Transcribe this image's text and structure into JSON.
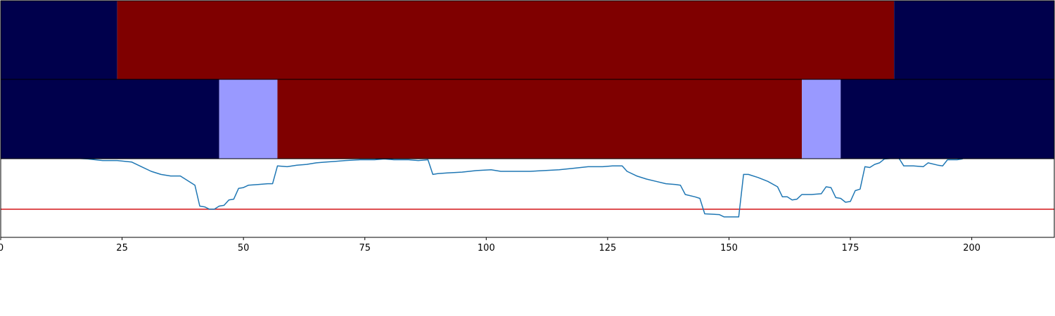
{
  "colors": {
    "background": "#ffffff",
    "panel_border": "#000000",
    "state_high": "#7f0000",
    "state_low": "#00004c",
    "state_mid": "#9999ff",
    "line": "#1f77b4",
    "threshold": "#d62728"
  },
  "chart_data": {
    "type": "line",
    "title": "",
    "xlabel": "",
    "ylabel": "",
    "xlim": [
      0,
      217
    ],
    "ylim": [
      0,
      1
    ],
    "x_ticks": [
      0,
      25,
      50,
      75,
      100,
      125,
      150,
      175,
      200
    ],
    "x_tick_labels": [
      "0",
      "25",
      "50",
      "75",
      "100",
      "125",
      "150",
      "175",
      "200"
    ],
    "grid": false,
    "legend": "none",
    "bands": [
      {
        "name": "",
        "segments": [
          {
            "start": 0,
            "end": 24,
            "state": "low"
          },
          {
            "start": 24,
            "end": 184,
            "state": "high"
          },
          {
            "start": 184,
            "end": 217,
            "state": "low"
          }
        ]
      },
      {
        "name": "",
        "segments": [
          {
            "start": 0,
            "end": 45,
            "state": "low"
          },
          {
            "start": 45,
            "end": 57,
            "state": "mid"
          },
          {
            "start": 57,
            "end": 165,
            "state": "high"
          },
          {
            "start": 165,
            "end": 173,
            "state": "mid"
          },
          {
            "start": 173,
            "end": 217,
            "state": "low"
          }
        ]
      }
    ],
    "threshold": 0.31,
    "series": [
      {
        "name": "",
        "points": [
          [
            0,
            0.99
          ],
          [
            3,
            0.99
          ],
          [
            6,
            1.0
          ],
          [
            9,
            0.99
          ],
          [
            12,
            0.98
          ],
          [
            15,
            0.97
          ],
          [
            18,
            0.96
          ],
          [
            21,
            0.94
          ],
          [
            24,
            0.94
          ],
          [
            27,
            0.92
          ],
          [
            29,
            0.86
          ],
          [
            31,
            0.8
          ],
          [
            33,
            0.76
          ],
          [
            35,
            0.74
          ],
          [
            37,
            0.74
          ],
          [
            39,
            0.66
          ],
          [
            40,
            0.62
          ],
          [
            41,
            0.35
          ],
          [
            42,
            0.34
          ],
          [
            43,
            0.31
          ],
          [
            44,
            0.31
          ],
          [
            45,
            0.35
          ],
          [
            46,
            0.36
          ],
          [
            47,
            0.43
          ],
          [
            48,
            0.44
          ],
          [
            49,
            0.58
          ],
          [
            50,
            0.59
          ],
          [
            51,
            0.62
          ],
          [
            53,
            0.63
          ],
          [
            55,
            0.64
          ],
          [
            56,
            0.64
          ],
          [
            57,
            0.87
          ],
          [
            59,
            0.86
          ],
          [
            61,
            0.88
          ],
          [
            63,
            0.89
          ],
          [
            65,
            0.91
          ],
          [
            67,
            0.92
          ],
          [
            69,
            0.93
          ],
          [
            71,
            0.94
          ],
          [
            74,
            0.95
          ],
          [
            77,
            0.95
          ],
          [
            79,
            0.96
          ],
          [
            81,
            0.95
          ],
          [
            84,
            0.95
          ],
          [
            86,
            0.94
          ],
          [
            88,
            0.95
          ],
          [
            89,
            0.76
          ],
          [
            90,
            0.77
          ],
          [
            92,
            0.78
          ],
          [
            95,
            0.79
          ],
          [
            98,
            0.81
          ],
          [
            101,
            0.82
          ],
          [
            103,
            0.8
          ],
          [
            106,
            0.8
          ],
          [
            109,
            0.8
          ],
          [
            112,
            0.81
          ],
          [
            115,
            0.82
          ],
          [
            118,
            0.84
          ],
          [
            121,
            0.86
          ],
          [
            124,
            0.86
          ],
          [
            126,
            0.87
          ],
          [
            128,
            0.87
          ],
          [
            129,
            0.8
          ],
          [
            131,
            0.74
          ],
          [
            133,
            0.7
          ],
          [
            135,
            0.67
          ],
          [
            137,
            0.64
          ],
          [
            139,
            0.63
          ],
          [
            140,
            0.62
          ],
          [
            141,
            0.5
          ],
          [
            143,
            0.47
          ],
          [
            144,
            0.45
          ],
          [
            145,
            0.25
          ],
          [
            148,
            0.24
          ],
          [
            149,
            0.21
          ],
          [
            151,
            0.21
          ],
          [
            152,
            0.21
          ],
          [
            153,
            0.76
          ],
          [
            154,
            0.76
          ],
          [
            156,
            0.72
          ],
          [
            158,
            0.67
          ],
          [
            160,
            0.6
          ],
          [
            161,
            0.47
          ],
          [
            162,
            0.47
          ],
          [
            163,
            0.43
          ],
          [
            164,
            0.44
          ],
          [
            165,
            0.5
          ],
          [
            167,
            0.5
          ],
          [
            169,
            0.51
          ],
          [
            170,
            0.6
          ],
          [
            171,
            0.59
          ],
          [
            172,
            0.46
          ],
          [
            173,
            0.45
          ],
          [
            174,
            0.4
          ],
          [
            175,
            0.41
          ],
          [
            176,
            0.55
          ],
          [
            177,
            0.57
          ],
          [
            178,
            0.86
          ],
          [
            179,
            0.85
          ],
          [
            180,
            0.89
          ],
          [
            181,
            0.91
          ],
          [
            182,
            0.96
          ],
          [
            184,
            0.97
          ],
          [
            185,
            0.97
          ],
          [
            186,
            0.87
          ],
          [
            188,
            0.87
          ],
          [
            190,
            0.86
          ],
          [
            191,
            0.91
          ],
          [
            193,
            0.88
          ],
          [
            194,
            0.87
          ],
          [
            195,
            0.95
          ],
          [
            197,
            0.95
          ],
          [
            198,
            0.96
          ],
          [
            199,
            0.99
          ],
          [
            201,
            0.99
          ],
          [
            203,
            1.0
          ],
          [
            206,
            1.0
          ],
          [
            209,
            1.0
          ],
          [
            212,
            1.0
          ],
          [
            215,
            1.0
          ],
          [
            217,
            1.0
          ]
        ]
      }
    ]
  }
}
